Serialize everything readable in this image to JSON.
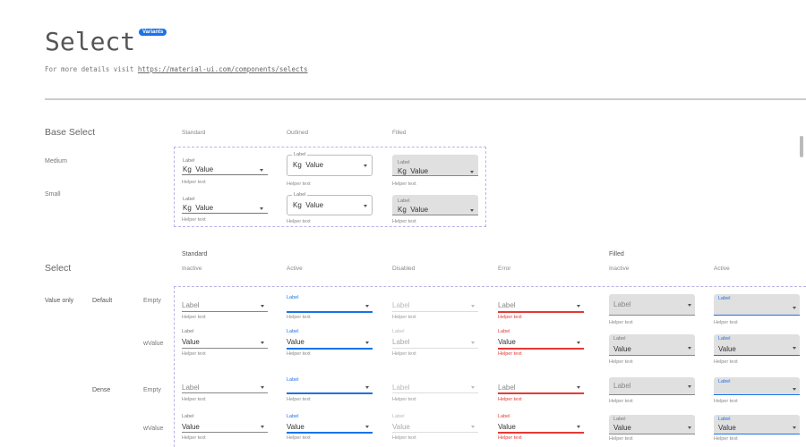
{
  "header": {
    "title": "Select",
    "badge": "Variants",
    "subtitle_prefix": "For more details visit ",
    "link": "https://material-ui.com/components/selects"
  },
  "colors": {
    "accent": "#1a73e8",
    "error": "#e53935",
    "filled_bg": "#e0e0e0"
  },
  "base": {
    "heading": "Base Select",
    "columns": [
      "Standard",
      "Outlined",
      "Filled"
    ],
    "rows": [
      "Medium",
      "Small"
    ],
    "field": {
      "label": "Label",
      "prefix": "Kg",
      "value": "Value",
      "helper": "Helper text"
    }
  },
  "select": {
    "heading": "Select",
    "groups": [
      "Standard",
      "Filled"
    ],
    "columns": [
      "Inactive",
      "Active",
      "Disabled",
      "Error",
      "Inactive",
      "Active"
    ],
    "mode": "Value only",
    "sizes": [
      "Default",
      "Dense"
    ],
    "row_labels": [
      "Empty",
      "wValue",
      "Empty",
      "wValue"
    ],
    "label": "Label",
    "value": "Value",
    "helper": "Helper text",
    "disabled_default_value": "Label"
  }
}
